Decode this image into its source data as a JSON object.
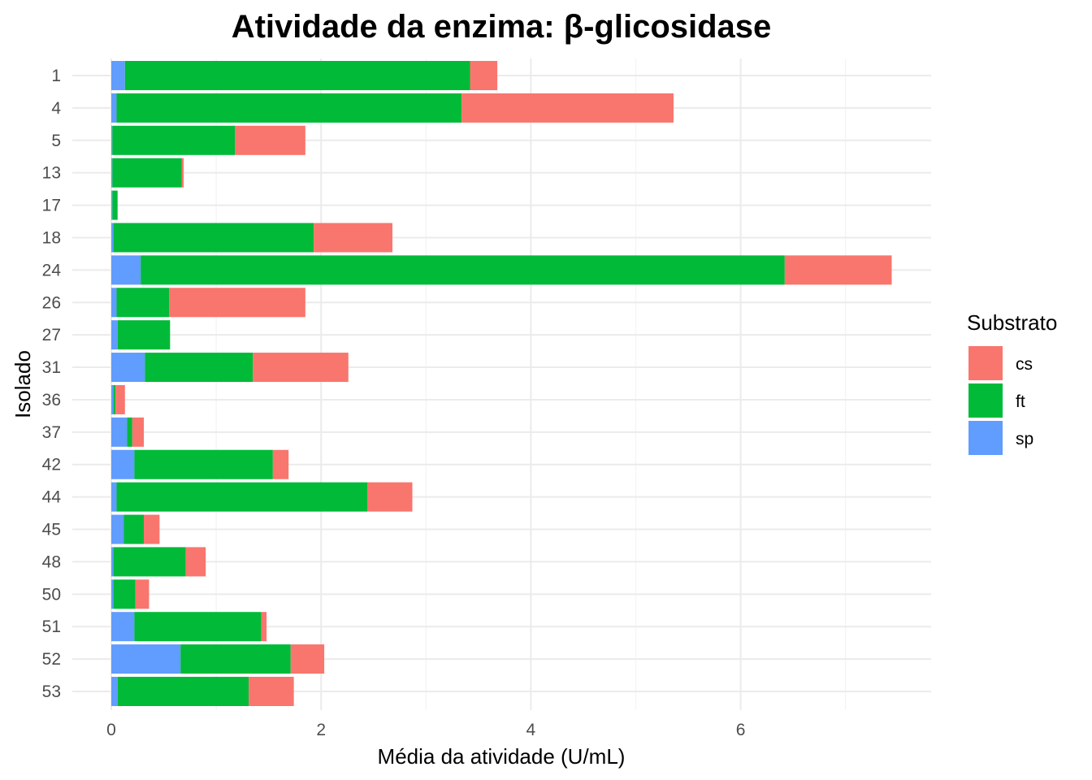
{
  "chart_data": {
    "type": "bar",
    "orientation": "horizontal",
    "stacked": true,
    "title": "Atividade da enzima: β-glicosidase",
    "xlabel": "Média da atividade (U/mL)",
    "ylabel": "Isolado",
    "xlim": [
      0,
      7.8
    ],
    "xticks": [
      0,
      2,
      4,
      6
    ],
    "grid": true,
    "legend": {
      "title": "Substrato",
      "position": "right"
    },
    "categories": [
      "1",
      "4",
      "5",
      "13",
      "17",
      "18",
      "24",
      "26",
      "27",
      "31",
      "36",
      "37",
      "42",
      "44",
      "45",
      "48",
      "50",
      "51",
      "52",
      "53"
    ],
    "series": [
      {
        "name": "sp",
        "color": "#619CFF",
        "values": [
          0.13,
          0.05,
          0.01,
          0.01,
          0.01,
          0.02,
          0.28,
          0.05,
          0.06,
          0.32,
          0.02,
          0.15,
          0.22,
          0.05,
          0.12,
          0.02,
          0.02,
          0.22,
          0.66,
          0.06
        ]
      },
      {
        "name": "ft",
        "color": "#00BA38",
        "values": [
          3.29,
          3.29,
          1.17,
          0.66,
          0.05,
          1.91,
          6.14,
          0.5,
          0.5,
          1.03,
          0.02,
          0.05,
          1.32,
          2.39,
          0.19,
          0.69,
          0.21,
          1.21,
          1.05,
          1.25
        ]
      },
      {
        "name": "cs",
        "color": "#F8766D",
        "values": [
          0.26,
          2.02,
          0.67,
          0.02,
          0.0,
          0.75,
          1.02,
          1.3,
          0.0,
          0.91,
          0.09,
          0.11,
          0.15,
          0.43,
          0.15,
          0.19,
          0.13,
          0.05,
          0.32,
          0.43
        ]
      }
    ]
  }
}
